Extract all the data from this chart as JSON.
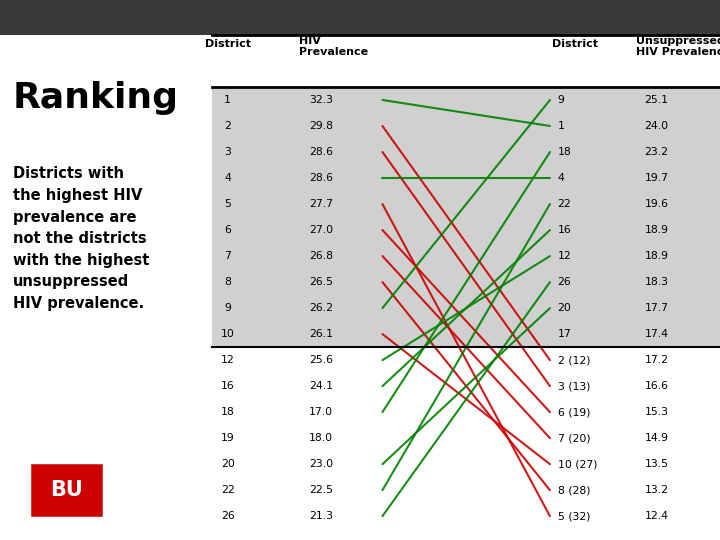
{
  "title": "Ranking",
  "subtitle_lines": [
    "Districts with",
    "the highest HIV",
    "prevalence are",
    "not the districts",
    "with the highest",
    "unsuppressed",
    "HIV prevalence."
  ],
  "left_rows": [
    [
      "1",
      "32.3"
    ],
    [
      "2",
      "29.8"
    ],
    [
      "3",
      "28.6"
    ],
    [
      "4",
      "28.6"
    ],
    [
      "5",
      "27.7"
    ],
    [
      "6",
      "27.0"
    ],
    [
      "7",
      "26.8"
    ],
    [
      "8",
      "26.5"
    ],
    [
      "9",
      "26.2"
    ],
    [
      "10",
      "26.1"
    ],
    [
      "12",
      "25.6"
    ],
    [
      "16",
      "24.1"
    ],
    [
      "18",
      "17.0"
    ],
    [
      "19",
      "18.0"
    ],
    [
      "20",
      "23.0"
    ],
    [
      "22",
      "22.5"
    ],
    [
      "26",
      "21.3"
    ]
  ],
  "right_rows": [
    [
      "9",
      "25.1"
    ],
    [
      "1",
      "24.0"
    ],
    [
      "18",
      "23.2"
    ],
    [
      "4",
      "19.7"
    ],
    [
      "22",
      "19.6"
    ],
    [
      "16",
      "18.9"
    ],
    [
      "12",
      "18.9"
    ],
    [
      "26",
      "18.3"
    ],
    [
      "20",
      "17.7"
    ],
    [
      "17",
      "17.4"
    ],
    [
      "2 (12)",
      "17.2"
    ],
    [
      "3 (13)",
      "16.6"
    ],
    [
      "6 (19)",
      "15.3"
    ],
    [
      "7 (20)",
      "14.9"
    ],
    [
      "10 (27)",
      "13.5"
    ],
    [
      "8 (28)",
      "13.2"
    ],
    [
      "5 (32)",
      "12.4"
    ]
  ],
  "connections": [
    {
      "left_district": "1",
      "right_district": "1",
      "color": "#008000"
    },
    {
      "left_district": "2",
      "right_district": "2 (12)",
      "color": "#cc0000"
    },
    {
      "left_district": "3",
      "right_district": "3 (13)",
      "color": "#cc0000"
    },
    {
      "left_district": "4",
      "right_district": "4",
      "color": "#008000"
    },
    {
      "left_district": "5",
      "right_district": "5 (32)",
      "color": "#cc0000"
    },
    {
      "left_district": "6",
      "right_district": "6 (19)",
      "color": "#cc0000"
    },
    {
      "left_district": "7",
      "right_district": "7 (20)",
      "color": "#cc0000"
    },
    {
      "left_district": "8",
      "right_district": "8 (28)",
      "color": "#cc0000"
    },
    {
      "left_district": "9",
      "right_district": "9",
      "color": "#008000"
    },
    {
      "left_district": "10",
      "right_district": "10 (27)",
      "color": "#cc0000"
    },
    {
      "left_district": "12",
      "right_district": "12",
      "color": "#008000"
    },
    {
      "left_district": "16",
      "right_district": "16",
      "color": "#008000"
    },
    {
      "left_district": "18",
      "right_district": "18",
      "color": "#008000"
    },
    {
      "left_district": "20",
      "right_district": "20",
      "color": "#008000"
    },
    {
      "left_district": "22",
      "right_district": "22",
      "color": "#008000"
    },
    {
      "left_district": "26",
      "right_district": "26",
      "color": "#008000"
    }
  ],
  "bu_logo_color": "#cc0000",
  "header_bar_color": "#3a3a3a",
  "shaded_row_color": "#d0d0d0",
  "white_row_color": "#ffffff",
  "shaded_rows": 10,
  "line_width": 1.5
}
